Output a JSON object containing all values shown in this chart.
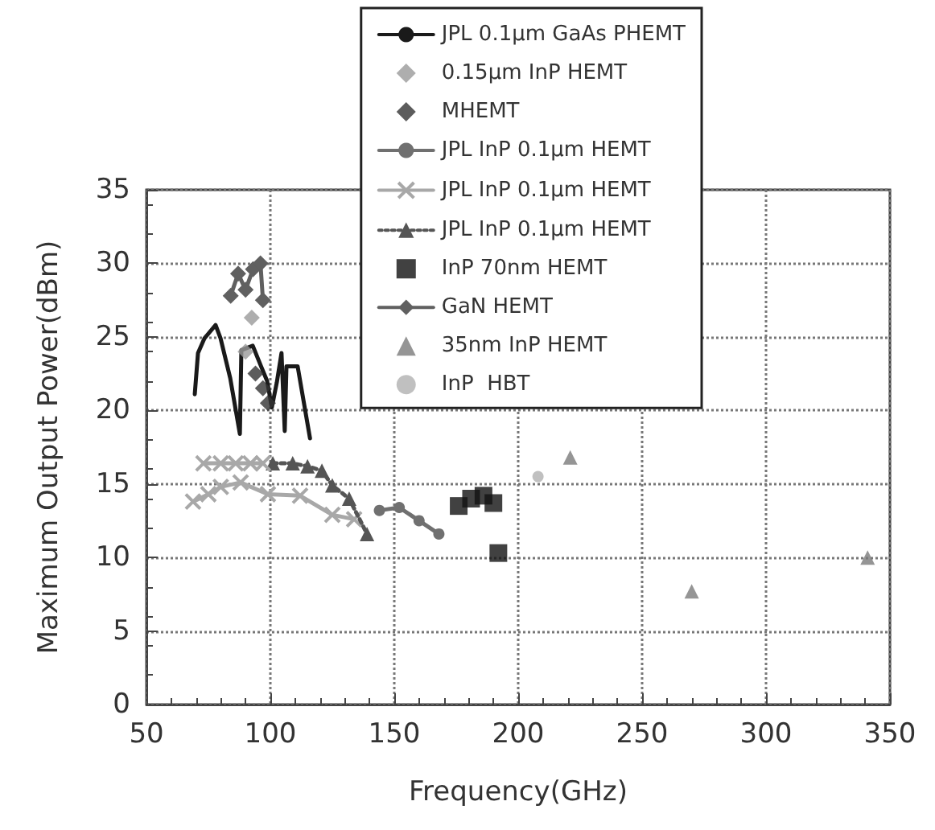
{
  "chart_data": {
    "type": "line",
    "xlabel": "Frequency(GHz)",
    "ylabel": "Maximum Output Power(dBm)",
    "xlim": [
      50,
      350
    ],
    "xticks": [
      50,
      100,
      150,
      200,
      250,
      300,
      350
    ],
    "ylim": [
      0,
      35
    ],
    "yticks": [
      0,
      5,
      10,
      15,
      20,
      25,
      30,
      35
    ],
    "grid": true,
    "legend": "top",
    "series": [
      {
        "name": "JPL 0.1μm GaAs PHEMT",
        "type": "line",
        "marker": "none",
        "color": "#1a1a1a",
        "x": [
          69.5,
          70.8,
          73.4,
          77.9,
          79.9,
          83.8,
          87.7,
          88.3,
          92.9,
          96,
          98.7,
          100.6,
          102.6,
          104.5,
          105.8,
          106.5,
          111,
          116
        ],
        "values": [
          21.1,
          23.9,
          24.9,
          25.8,
          24.9,
          22.2,
          18.4,
          24.1,
          24.4,
          23.1,
          22,
          20.2,
          21.9,
          23.9,
          18.6,
          23,
          23,
          18.1
        ]
      },
      {
        "name": "0.15μm InP HEMT",
        "type": "scatter",
        "marker": "diamond",
        "color": "#9a9a9a",
        "x": [
          92.5,
          90
        ],
        "values": [
          26.3,
          24
        ]
      },
      {
        "name": "MHEMT",
        "type": "scatter",
        "marker": "diamond",
        "color": "#333333",
        "x": [
          94,
          97,
          99
        ],
        "values": [
          22.5,
          21.5,
          20.5
        ]
      },
      {
        "name": "JPL InP 0.1μm HEMT",
        "type": "line",
        "marker": "circle",
        "color": "#707070",
        "x": [
          144,
          152,
          160,
          168
        ],
        "values": [
          13.2,
          13.4,
          12.5,
          11.6
        ]
      },
      {
        "name": "JPL InP 0.1μm HEMT",
        "type": "line",
        "marker": "cross",
        "color": "#a8a8a8",
        "x": [
          68.8,
          75,
          80,
          88,
          99,
          112,
          125,
          133.8
        ],
        "values": [
          13.8,
          14.3,
          14.8,
          15.1,
          14.3,
          14.2,
          12.9,
          12.6
        ]
      },
      {
        "name": "JPL InP 0.1μm HEMT",
        "type": "line",
        "marker": "triangle",
        "line_style": "dotted",
        "color": "#555555",
        "x": [
          101,
          109,
          115,
          120.8,
          125,
          131.8,
          139
        ],
        "values": [
          16.4,
          16.4,
          16.2,
          15.9,
          14.9,
          14,
          11.6
        ]
      },
      {
        "name": "InP 70nm HEMT",
        "type": "scatter",
        "marker": "square",
        "color": "#111111",
        "x": [
          176,
          181,
          186,
          190,
          192
        ],
        "values": [
          13.5,
          14,
          14.2,
          13.7,
          10.3
        ]
      },
      {
        "name": "GaN HEMT",
        "type": "line",
        "marker": "diamond",
        "color": "#606060",
        "x": [
          84,
          87,
          90,
          93,
          96,
          97
        ],
        "values": [
          27.8,
          29.3,
          28.2,
          29.6,
          30,
          27.5
        ]
      },
      {
        "name": "35nm InP HEMT",
        "type": "scatter",
        "marker": "triangle",
        "color": "#7a7a7a",
        "x": [
          221,
          270,
          341
        ],
        "values": [
          16.8,
          7.7,
          10
        ]
      },
      {
        "name": "InP  HBT",
        "type": "scatter",
        "marker": "circle",
        "color": "#b0b0b0",
        "x": [
          208
        ],
        "values": [
          15.5
        ]
      },
      {
        "type": "line",
        "marker": "cross",
        "color": "#a8a8a8",
        "x": [
          73,
          80,
          86,
          92,
          97
        ],
        "values": [
          16.4,
          16.4,
          16.4,
          16.4,
          16.4
        ]
      }
    ]
  }
}
